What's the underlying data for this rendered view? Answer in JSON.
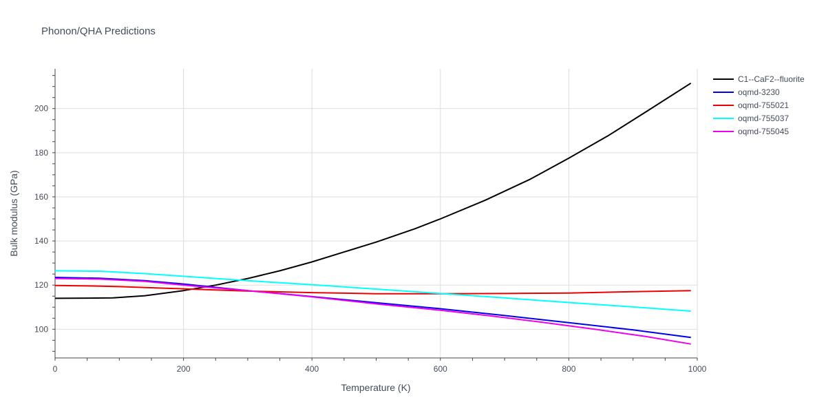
{
  "chart_data": {
    "type": "line",
    "title": "Phonon/QHA Predictions",
    "xlabel": "Temperature (K)",
    "ylabel": "Bulk modulus (GPa)",
    "xlim": [
      0,
      1000
    ],
    "ylim": [
      87,
      218
    ],
    "x_ticks": [
      0,
      200,
      400,
      600,
      800,
      1000
    ],
    "y_ticks": [
      100,
      120,
      140,
      160,
      180,
      200
    ],
    "grid": true,
    "legend_position": "top-right",
    "series": [
      {
        "name": "C1--CaF2--fluorite",
        "color": "#000000",
        "x": [
          0,
          50,
          90,
          140,
          200,
          250,
          300,
          350,
          400,
          450,
          500,
          560,
          600,
          670,
          740,
          800,
          860,
          920,
          990
        ],
        "y": [
          114,
          114.1,
          114.2,
          115.2,
          117.5,
          120,
          123,
          126.5,
          130.5,
          135,
          139.5,
          145.5,
          150,
          158.5,
          168,
          177.5,
          187.5,
          198.5,
          211.5
        ]
      },
      {
        "name": "oqmd-3230",
        "color": "#0000ee",
        "x": [
          0,
          70,
          140,
          200,
          300,
          400,
          500,
          600,
          700,
          800,
          900,
          990
        ],
        "y": [
          123.5,
          123.1,
          122,
          120.5,
          117.5,
          114.8,
          112,
          109.3,
          106.2,
          103,
          99.7,
          96.3
        ]
      },
      {
        "name": "oqmd-755021",
        "color": "#ee0000",
        "x": [
          0,
          60,
          100,
          200,
          300,
          400,
          500,
          600,
          700,
          800,
          900,
          990
        ],
        "y": [
          119.8,
          119.6,
          119.3,
          118.3,
          117.3,
          116.6,
          116.1,
          116.1,
          116.2,
          116.4,
          117,
          117.5
        ]
      },
      {
        "name": "oqmd-755037",
        "color": "#00ffff",
        "x": [
          0,
          70,
          140,
          200,
          300,
          400,
          500,
          600,
          700,
          800,
          900,
          990
        ],
        "y": [
          126.5,
          126.3,
          125.2,
          124,
          122,
          120.2,
          118.2,
          116.2,
          114.2,
          112.1,
          110.1,
          108.2
        ]
      },
      {
        "name": "oqmd-755045",
        "color": "#ee00ee",
        "x": [
          0,
          70,
          140,
          200,
          300,
          400,
          500,
          600,
          680,
          760,
          840,
          920,
          990
        ],
        "y": [
          123,
          122.7,
          121.7,
          120,
          117.5,
          114.7,
          111.5,
          108.6,
          106,
          103.1,
          100,
          96.7,
          93.3
        ]
      }
    ]
  }
}
